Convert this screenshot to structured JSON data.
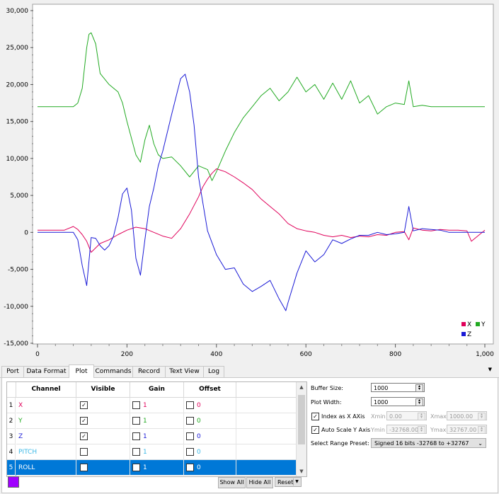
{
  "chart_data": {
    "type": "line",
    "xlim": [
      0,
      1000
    ],
    "ylim": [
      -15000,
      30000
    ],
    "x_ticks": [
      "0",
      "200",
      "400",
      "600",
      "800",
      "1,000"
    ],
    "y_ticks": [
      "30,000",
      "25,000",
      "20,000",
      "15,000",
      "10,000",
      "5,000",
      "0",
      "-5,000",
      "-10,000",
      "-15,000"
    ],
    "legend_placement": "bottom-right",
    "series": [
      {
        "name": "X",
        "color": "#e0005a",
        "x": [
          0,
          60,
          80,
          90,
          100,
          110,
          120,
          140,
          160,
          180,
          200,
          220,
          240,
          260,
          280,
          300,
          320,
          340,
          360,
          370,
          380,
          390,
          400,
          420,
          440,
          460,
          480,
          500,
          520,
          540,
          560,
          580,
          600,
          620,
          640,
          660,
          680,
          700,
          720,
          740,
          760,
          780,
          800,
          820,
          830,
          840,
          860,
          880,
          900,
          920,
          940,
          960,
          970,
          1000
        ],
        "y": [
          300,
          300,
          800,
          400,
          -300,
          -1200,
          -2700,
          -1500,
          -1000,
          -300,
          300,
          700,
          500,
          0,
          -500,
          -800,
          500,
          2500,
          4800,
          6200,
          7200,
          8000,
          8600,
          8200,
          7500,
          6700,
          5800,
          4500,
          3500,
          2500,
          1200,
          500,
          200,
          0,
          -400,
          -600,
          -400,
          -700,
          -500,
          -600,
          -300,
          -400,
          0,
          100,
          -1000,
          600,
          300,
          200,
          400,
          300,
          300,
          200,
          -1200,
          300
        ]
      },
      {
        "name": "Y",
        "color": "#22aa22",
        "x": [
          0,
          80,
          90,
          100,
          110,
          115,
          120,
          130,
          140,
          160,
          180,
          190,
          200,
          220,
          230,
          240,
          250,
          260,
          270,
          280,
          300,
          320,
          340,
          360,
          380,
          390,
          400,
          420,
          440,
          460,
          480,
          500,
          520,
          540,
          560,
          580,
          600,
          620,
          640,
          660,
          680,
          700,
          720,
          740,
          760,
          780,
          800,
          820,
          830,
          840,
          860,
          880,
          900,
          970,
          1000
        ],
        "y": [
          17000,
          17000,
          17500,
          19500,
          25000,
          26800,
          27000,
          25500,
          21500,
          20000,
          19000,
          17500,
          15000,
          10500,
          9500,
          12500,
          14500,
          12000,
          10500,
          10000,
          10200,
          9000,
          7500,
          9000,
          8500,
          7000,
          8200,
          11000,
          13500,
          15500,
          17000,
          18500,
          19500,
          17800,
          19000,
          21000,
          19000,
          20000,
          18000,
          20200,
          18000,
          20500,
          17500,
          18500,
          16000,
          17000,
          17500,
          17300,
          20500,
          17000,
          17200,
          17000,
          17000,
          17000,
          17000
        ]
      },
      {
        "name": "Z",
        "color": "#1a1ad6",
        "x": [
          0,
          80,
          90,
          100,
          110,
          120,
          130,
          140,
          150,
          160,
          170,
          180,
          190,
          200,
          210,
          220,
          230,
          240,
          250,
          260,
          270,
          280,
          300,
          320,
          330,
          340,
          350,
          360,
          380,
          400,
          420,
          440,
          460,
          480,
          500,
          520,
          540,
          555,
          560,
          580,
          600,
          620,
          640,
          660,
          680,
          700,
          720,
          740,
          760,
          780,
          800,
          820,
          830,
          840,
          860,
          880,
          900,
          920,
          940,
          960,
          1000
        ],
        "y": [
          0,
          0,
          -1000,
          -4500,
          -7200,
          -700,
          -800,
          -1800,
          -2400,
          -1800,
          -500,
          2000,
          5200,
          6000,
          3000,
          -3500,
          -5800,
          -1000,
          3500,
          6000,
          9000,
          11000,
          16000,
          20800,
          21400,
          19000,
          14500,
          7500,
          200,
          -3000,
          -5000,
          -4800,
          -7000,
          -8000,
          -7300,
          -6500,
          -9000,
          -10600,
          -9500,
          -5500,
          -2500,
          -4000,
          -3000,
          -1000,
          -1500,
          -900,
          -400,
          -400,
          0,
          -300,
          -200,
          0,
          3500,
          200,
          500,
          400,
          300,
          0,
          0,
          0,
          0
        ]
      }
    ]
  },
  "tabs": [
    "Port",
    "Data Format",
    "Plot",
    "Commands",
    "Record",
    "Text View",
    "Log"
  ],
  "active_tab": "Plot",
  "channel_table": {
    "headers": [
      "Channel",
      "Visible",
      "Gain",
      "Offset"
    ],
    "rows": [
      {
        "num": "1",
        "name": "X",
        "color": "#e0005a",
        "visible": true,
        "gain": "1",
        "offset": "0",
        "selected": false
      },
      {
        "num": "2",
        "name": "Y",
        "color": "#22aa22",
        "visible": true,
        "gain": "1",
        "offset": "0",
        "selected": false
      },
      {
        "num": "3",
        "name": "Z",
        "color": "#1a1ad6",
        "visible": true,
        "gain": "1",
        "offset": "0",
        "selected": false
      },
      {
        "num": "4",
        "name": "PITCH",
        "color": "#3cb8e6",
        "visible": false,
        "gain": "1",
        "offset": "0",
        "selected": false
      },
      {
        "num": "5",
        "name": "ROLL",
        "color": "#ffffff",
        "visible": false,
        "gain": "1",
        "offset": "0",
        "selected": true
      }
    ]
  },
  "buttons": {
    "show_all": "Show All",
    "hide_all": "Hide All",
    "reset": "Reset"
  },
  "settings": {
    "buffer_size_label": "Buffer Size:",
    "buffer_size": "1000",
    "plot_width_label": "Plot Width:",
    "plot_width": "1000",
    "index_as_x_label": "Index as X AXis",
    "index_as_x": true,
    "xmin_label": "Xmin",
    "xmin": "0.00",
    "xmax_label": "Xmax",
    "xmax": "1000.00",
    "auto_scale_label": "Auto Scale Y Axis",
    "auto_scale": true,
    "ymin_label": "Ymin",
    "ymin": "-32768.00",
    "ymax_label": "Ymax",
    "ymax": "32767.00",
    "range_preset_label": "Select Range Preset:",
    "range_preset": "Signed 16 bits -32768 to +32767"
  },
  "colors": {
    "selection": "#0078d7",
    "swatch": "#a000ff"
  }
}
